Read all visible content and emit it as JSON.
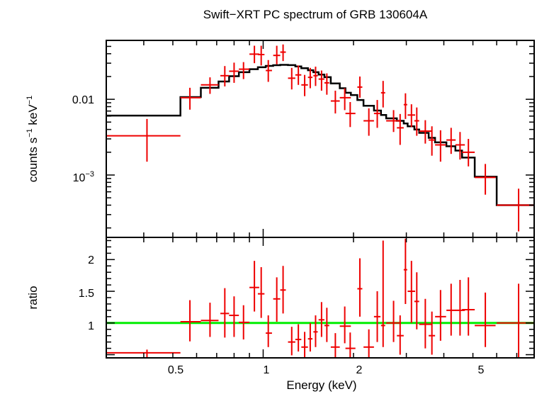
{
  "chart_data": [
    {
      "type": "line",
      "title": "Swift−XRT PC spectrum of GRB 130604A",
      "ylabel_main": "counts s",
      "ylabel_sup1": "−1",
      "ylabel_mid": " keV",
      "ylabel_sup2": "−1",
      "xlabel": "Energy (keV)",
      "xscale": "log",
      "yscale": "log",
      "xlim": [
        0.3,
        8.0
      ],
      "ylim": [
        0.00015,
        0.06
      ],
      "ytick_labels": [
        {
          "value": 0.01,
          "label": "0.01"
        },
        {
          "value": 0.001,
          "label": "10",
          "sup": "−3"
        }
      ],
      "data": [
        {
          "x": 0.41,
          "xlo": 0.3,
          "xhi": 0.53,
          "y": 0.0033,
          "ylo": 0.0015,
          "yhi": 0.0055
        },
        {
          "x": 0.57,
          "xlo": 0.53,
          "xhi": 0.62,
          "y": 0.0105,
          "ylo": 0.0073,
          "yhi": 0.0142
        },
        {
          "x": 0.665,
          "xlo": 0.62,
          "xhi": 0.71,
          "y": 0.0155,
          "ylo": 0.0118,
          "yhi": 0.0195
        },
        {
          "x": 0.745,
          "xlo": 0.72,
          "xhi": 0.77,
          "y": 0.0205,
          "ylo": 0.0148,
          "yhi": 0.0275
        },
        {
          "x": 0.8,
          "xlo": 0.77,
          "xhi": 0.83,
          "y": 0.0235,
          "ylo": 0.0165,
          "yhi": 0.0305
        },
        {
          "x": 0.86,
          "xlo": 0.83,
          "xhi": 0.9,
          "y": 0.025,
          "ylo": 0.0185,
          "yhi": 0.031
        },
        {
          "x": 0.935,
          "xlo": 0.9,
          "xhi": 0.97,
          "y": 0.0395,
          "ylo": 0.03,
          "yhi": 0.051
        },
        {
          "x": 0.985,
          "xlo": 0.96,
          "xhi": 1.01,
          "y": 0.039,
          "ylo": 0.028,
          "yhi": 0.051
        },
        {
          "x": 1.04,
          "xlo": 1.02,
          "xhi": 1.07,
          "y": 0.024,
          "ylo": 0.017,
          "yhi": 0.033
        },
        {
          "x": 1.11,
          "xlo": 1.08,
          "xhi": 1.14,
          "y": 0.038,
          "ylo": 0.029,
          "yhi": 0.051
        },
        {
          "x": 1.165,
          "xlo": 1.14,
          "xhi": 1.19,
          "y": 0.042,
          "ylo": 0.032,
          "yhi": 0.053
        },
        {
          "x": 1.245,
          "xlo": 1.21,
          "xhi": 1.28,
          "y": 0.019,
          "ylo": 0.0135,
          "yhi": 0.026
        },
        {
          "x": 1.31,
          "xlo": 1.28,
          "xhi": 1.34,
          "y": 0.021,
          "ylo": 0.0155,
          "yhi": 0.028
        },
        {
          "x": 1.375,
          "xlo": 1.34,
          "xhi": 1.41,
          "y": 0.0155,
          "ylo": 0.011,
          "yhi": 0.021
        },
        {
          "x": 1.435,
          "xlo": 1.41,
          "xhi": 1.46,
          "y": 0.0195,
          "ylo": 0.014,
          "yhi": 0.026
        },
        {
          "x": 1.495,
          "xlo": 1.47,
          "xhi": 1.52,
          "y": 0.0205,
          "ylo": 0.015,
          "yhi": 0.027
        },
        {
          "x": 1.565,
          "xlo": 1.53,
          "xhi": 1.6,
          "y": 0.0185,
          "ylo": 0.013,
          "yhi": 0.024
        },
        {
          "x": 1.63,
          "xlo": 1.6,
          "xhi": 1.66,
          "y": 0.0165,
          "ylo": 0.0115,
          "yhi": 0.022
        },
        {
          "x": 1.74,
          "xlo": 1.68,
          "xhi": 1.8,
          "y": 0.0095,
          "ylo": 0.0065,
          "yhi": 0.013
        },
        {
          "x": 1.87,
          "xlo": 1.8,
          "xhi": 1.96,
          "y": 0.0105,
          "ylo": 0.0072,
          "yhi": 0.014
        },
        {
          "x": 1.95,
          "xlo": 1.88,
          "xhi": 2.03,
          "y": 0.0065,
          "ylo": 0.0043,
          "yhi": 0.0092
        },
        {
          "x": 2.1,
          "xlo": 2.06,
          "xhi": 2.14,
          "y": 0.0145,
          "ylo": 0.0105,
          "yhi": 0.02
        },
        {
          "x": 2.25,
          "xlo": 2.16,
          "xhi": 2.34,
          "y": 0.0052,
          "ylo": 0.0033,
          "yhi": 0.0076
        },
        {
          "x": 2.4,
          "xlo": 2.34,
          "xhi": 2.46,
          "y": 0.0065,
          "ylo": 0.0042,
          "yhi": 0.0098
        },
        {
          "x": 2.51,
          "xlo": 2.47,
          "xhi": 2.55,
          "y": 0.0122,
          "ylo": 0.0078,
          "yhi": 0.0175
        },
        {
          "x": 2.72,
          "xlo": 2.57,
          "xhi": 2.88,
          "y": 0.0052,
          "ylo": 0.0037,
          "yhi": 0.0072
        },
        {
          "x": 2.86,
          "xlo": 2.79,
          "xhi": 2.94,
          "y": 0.0042,
          "ylo": 0.0025,
          "yhi": 0.0064
        },
        {
          "x": 2.98,
          "xlo": 2.94,
          "xhi": 3.02,
          "y": 0.0085,
          "ylo": 0.0055,
          "yhi": 0.012
        },
        {
          "x": 3.12,
          "xlo": 3.03,
          "xhi": 3.21,
          "y": 0.0062,
          "ylo": 0.0043,
          "yhi": 0.0086
        },
        {
          "x": 3.25,
          "xlo": 3.19,
          "xhi": 3.31,
          "y": 0.0052,
          "ylo": 0.0033,
          "yhi": 0.0078
        },
        {
          "x": 3.47,
          "xlo": 3.31,
          "xhi": 3.64,
          "y": 0.0038,
          "ylo": 0.0026,
          "yhi": 0.0053
        },
        {
          "x": 3.65,
          "xlo": 3.56,
          "xhi": 3.74,
          "y": 0.0029,
          "ylo": 0.0018,
          "yhi": 0.0044
        },
        {
          "x": 3.9,
          "xlo": 3.74,
          "xhi": 4.07,
          "y": 0.0025,
          "ylo": 0.0015,
          "yhi": 0.0039
        },
        {
          "x": 4.23,
          "xlo": 4.08,
          "xhi": 4.38,
          "y": 0.0029,
          "ylo": 0.0019,
          "yhi": 0.0042
        },
        {
          "x": 4.53,
          "xlo": 4.37,
          "xhi": 4.7,
          "y": 0.0025,
          "ylo": 0.0016,
          "yhi": 0.0037
        },
        {
          "x": 4.83,
          "xlo": 4.6,
          "xhi": 5.07,
          "y": 0.002,
          "ylo": 0.0013,
          "yhi": 0.003
        },
        {
          "x": 5.5,
          "xlo": 5.07,
          "xhi": 5.95,
          "y": 0.00093,
          "ylo": 0.00055,
          "yhi": 0.0014
        },
        {
          "x": 7.1,
          "xlo": 6.0,
          "xhi": 8.0,
          "y": 0.0004,
          "ylo": 0.00018,
          "yhi": 0.00066
        }
      ],
      "model": {
        "edges": [
          0.3,
          0.53,
          0.62,
          0.71,
          0.77,
          0.83,
          0.9,
          0.96,
          1.02,
          1.08,
          1.14,
          1.21,
          1.28,
          1.34,
          1.41,
          1.47,
          1.53,
          1.6,
          1.68,
          1.8,
          1.88,
          1.96,
          2.06,
          2.16,
          2.34,
          2.47,
          2.57,
          2.79,
          2.94,
          3.03,
          3.19,
          3.31,
          3.56,
          3.74,
          4.08,
          4.37,
          4.6,
          5.07,
          6.0,
          8.0
        ],
        "values": [
          0.0061,
          0.0107,
          0.0142,
          0.0172,
          0.0202,
          0.0228,
          0.025,
          0.0265,
          0.0276,
          0.0282,
          0.0285,
          0.0283,
          0.0272,
          0.0258,
          0.0242,
          0.0228,
          0.0212,
          0.0196,
          0.0162,
          0.014,
          0.0122,
          0.0114,
          0.0098,
          0.0082,
          0.0071,
          0.0062,
          0.0056,
          0.0052,
          0.0048,
          0.0044,
          0.004,
          0.0036,
          0.0031,
          0.0027,
          0.0024,
          0.0021,
          0.0017,
          0.00095,
          0.0004
        ]
      },
      "colors": {
        "data": "#ee0000",
        "model": "#000000",
        "frame": "#000000"
      }
    },
    {
      "type": "line",
      "ylabel": "ratio",
      "xlabel": "Energy (keV)",
      "xscale": "log",
      "xlim": [
        0.3,
        8.0
      ],
      "ylim": [
        0.45,
        2.35
      ],
      "yticks": [
        1,
        1.5,
        2
      ],
      "ytick_labels": [
        "1",
        "1.5",
        "2"
      ],
      "xticks": [
        0.5,
        1,
        2,
        5
      ],
      "xtick_labels": [
        "0.5",
        "1",
        "2",
        "5"
      ],
      "reference_line": 1,
      "data": [
        {
          "x": 0.41,
          "xlo": 0.3,
          "xhi": 0.53,
          "y": 0.53,
          "ylo": 0.45,
          "yhi": 0.58
        },
        {
          "x": 0.57,
          "xlo": 0.53,
          "xhi": 0.62,
          "y": 1.02,
          "ylo": 0.71,
          "yhi": 1.36
        },
        {
          "x": 0.665,
          "xlo": 0.62,
          "xhi": 0.71,
          "y": 1.04,
          "ylo": 0.78,
          "yhi": 1.32
        },
        {
          "x": 0.745,
          "xlo": 0.72,
          "xhi": 0.77,
          "y": 1.15,
          "ylo": 0.77,
          "yhi": 1.55
        },
        {
          "x": 0.8,
          "xlo": 0.77,
          "xhi": 0.83,
          "y": 1.12,
          "ylo": 0.78,
          "yhi": 1.42
        },
        {
          "x": 0.86,
          "xlo": 0.83,
          "xhi": 0.9,
          "y": 1.01,
          "ylo": 0.74,
          "yhi": 1.28
        },
        {
          "x": 0.935,
          "xlo": 0.9,
          "xhi": 0.97,
          "y": 1.56,
          "ylo": 1.18,
          "yhi": 1.98
        },
        {
          "x": 0.985,
          "xlo": 0.96,
          "xhi": 1.01,
          "y": 1.46,
          "ylo": 1.08,
          "yhi": 1.88
        },
        {
          "x": 1.04,
          "xlo": 1.02,
          "xhi": 1.07,
          "y": 0.84,
          "ylo": 0.62,
          "yhi": 1.12
        },
        {
          "x": 1.11,
          "xlo": 1.08,
          "xhi": 1.14,
          "y": 1.38,
          "ylo": 1.02,
          "yhi": 1.72
        },
        {
          "x": 1.165,
          "xlo": 1.14,
          "xhi": 1.19,
          "y": 1.52,
          "ylo": 1.15,
          "yhi": 1.9
        },
        {
          "x": 1.245,
          "xlo": 1.21,
          "xhi": 1.28,
          "y": 0.7,
          "ylo": 0.49,
          "yhi": 0.94
        },
        {
          "x": 1.31,
          "xlo": 1.28,
          "xhi": 1.34,
          "y": 0.74,
          "ylo": 0.55,
          "yhi": 0.98
        },
        {
          "x": 1.375,
          "xlo": 1.34,
          "xhi": 1.41,
          "y": 0.62,
          "ylo": 0.45,
          "yhi": 0.86
        },
        {
          "x": 1.435,
          "xlo": 1.41,
          "xhi": 1.46,
          "y": 0.75,
          "ylo": 0.55,
          "yhi": 1.0
        },
        {
          "x": 1.495,
          "xlo": 1.47,
          "xhi": 1.52,
          "y": 0.86,
          "ylo": 0.62,
          "yhi": 1.12
        },
        {
          "x": 1.565,
          "xlo": 1.53,
          "xhi": 1.6,
          "y": 1.05,
          "ylo": 0.78,
          "yhi": 1.33
        },
        {
          "x": 1.63,
          "xlo": 1.6,
          "xhi": 1.66,
          "y": 0.96,
          "ylo": 0.7,
          "yhi": 1.24
        },
        {
          "x": 1.74,
          "xlo": 1.68,
          "xhi": 1.8,
          "y": 0.62,
          "ylo": 0.45,
          "yhi": 0.84
        },
        {
          "x": 1.87,
          "xlo": 1.8,
          "xhi": 1.96,
          "y": 0.95,
          "ylo": 0.68,
          "yhi": 1.26
        },
        {
          "x": 1.95,
          "xlo": 1.88,
          "xhi": 2.03,
          "y": 0.6,
          "ylo": 0.45,
          "yhi": 0.85
        },
        {
          "x": 2.1,
          "xlo": 2.06,
          "xhi": 2.14,
          "y": 1.54,
          "ylo": 1.1,
          "yhi": 2.02
        },
        {
          "x": 2.25,
          "xlo": 2.16,
          "xhi": 2.34,
          "y": 0.62,
          "ylo": 0.45,
          "yhi": 0.9
        },
        {
          "x": 2.4,
          "xlo": 2.34,
          "xhi": 2.46,
          "y": 1.1,
          "ylo": 0.7,
          "yhi": 1.5
        },
        {
          "x": 2.51,
          "xlo": 2.47,
          "xhi": 2.55,
          "y": 0.96,
          "ylo": 0.62,
          "yhi": 2.3
        },
        {
          "x": 2.72,
          "xlo": 2.57,
          "xhi": 2.88,
          "y": 1.0,
          "ylo": 0.7,
          "yhi": 1.35
        },
        {
          "x": 2.86,
          "xlo": 2.79,
          "xhi": 2.94,
          "y": 0.8,
          "ylo": 0.5,
          "yhi": 1.12
        },
        {
          "x": 2.98,
          "xlo": 2.94,
          "xhi": 3.02,
          "y": 1.84,
          "ylo": 1.3,
          "yhi": 2.33
        },
        {
          "x": 3.12,
          "xlo": 3.03,
          "xhi": 3.21,
          "y": 1.5,
          "ylo": 1.0,
          "yhi": 1.98
        },
        {
          "x": 3.25,
          "xlo": 3.19,
          "xhi": 3.31,
          "y": 1.34,
          "ylo": 0.9,
          "yhi": 1.8
        },
        {
          "x": 3.47,
          "xlo": 3.31,
          "xhi": 3.64,
          "y": 0.98,
          "ylo": 0.6,
          "yhi": 1.38
        },
        {
          "x": 3.65,
          "xlo": 3.56,
          "xhi": 3.74,
          "y": 0.8,
          "ylo": 0.5,
          "yhi": 1.18
        },
        {
          "x": 3.9,
          "xlo": 3.74,
          "xhi": 4.07,
          "y": 1.1,
          "ylo": 0.72,
          "yhi": 1.52
        },
        {
          "x": 4.23,
          "xlo": 4.08,
          "xhi": 4.38,
          "y": 1.2,
          "ylo": 0.8,
          "yhi": 1.62
        },
        {
          "x": 4.53,
          "xlo": 4.37,
          "xhi": 4.7,
          "y": 1.2,
          "ylo": 0.8,
          "yhi": 1.68
        },
        {
          "x": 4.83,
          "xlo": 4.6,
          "xhi": 5.07,
          "y": 1.21,
          "ylo": 0.8,
          "yhi": 1.72
        },
        {
          "x": 5.5,
          "xlo": 5.07,
          "xhi": 5.95,
          "y": 0.96,
          "ylo": 0.62,
          "yhi": 1.48
        },
        {
          "x": 7.1,
          "xlo": 6.0,
          "xhi": 8.0,
          "y": 1.0,
          "ylo": 0.45,
          "yhi": 1.62
        }
      ],
      "colors": {
        "data": "#ee0000",
        "reference": "#00ee00",
        "frame": "#000000"
      }
    }
  ]
}
